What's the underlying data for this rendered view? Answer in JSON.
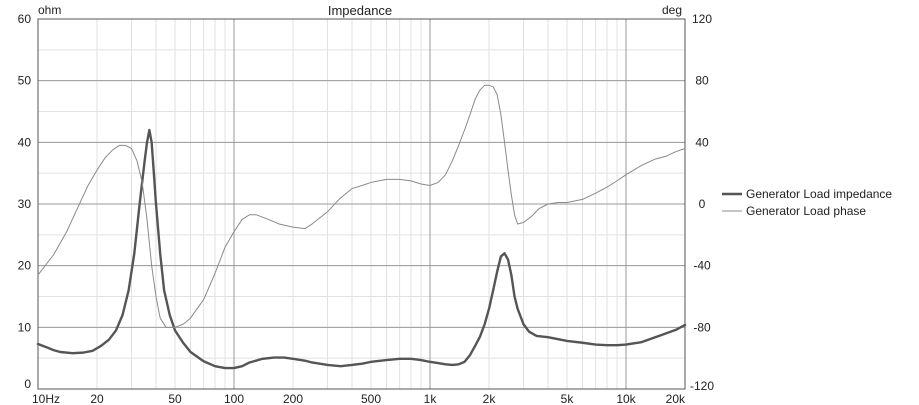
{
  "chart_data": {
    "type": "line",
    "title": "Impedance",
    "x_scale": "log",
    "xlim": [
      10,
      20000
    ],
    "x_ticks": [
      {
        "value": 10,
        "label": "10Hz"
      },
      {
        "value": 20,
        "label": "20"
      },
      {
        "value": 50,
        "label": "50"
      },
      {
        "value": 100,
        "label": "100"
      },
      {
        "value": 200,
        "label": "200"
      },
      {
        "value": 500,
        "label": "500"
      },
      {
        "value": 1000,
        "label": "1k"
      },
      {
        "value": 2000,
        "label": "2k"
      },
      {
        "value": 5000,
        "label": "5k"
      },
      {
        "value": 10000,
        "label": "10k"
      },
      {
        "value": 20000,
        "label": "20k"
      }
    ],
    "y_left": {
      "unit": "ohm",
      "ylim": [
        0,
        60
      ],
      "ticks": [
        0,
        10,
        20,
        30,
        40,
        50,
        60
      ]
    },
    "y_right": {
      "unit": "deg",
      "ylim": [
        -120,
        120
      ],
      "ticks": [
        -120,
        -80,
        -40,
        0,
        40,
        80,
        120
      ]
    },
    "grid": true,
    "legend_position": "right",
    "series": [
      {
        "name": "Generator Load impedance",
        "axis": "left",
        "color": "#555555",
        "points": [
          [
            10,
            7.3
          ],
          [
            11,
            6.8
          ],
          [
            12,
            6.3
          ],
          [
            13,
            6.0
          ],
          [
            15,
            5.8
          ],
          [
            17,
            5.9
          ],
          [
            19,
            6.2
          ],
          [
            21,
            7.0
          ],
          [
            23,
            8.0
          ],
          [
            25,
            9.5
          ],
          [
            27,
            12.0
          ],
          [
            29,
            16.0
          ],
          [
            31,
            22.0
          ],
          [
            33,
            30.0
          ],
          [
            35,
            37.0
          ],
          [
            36,
            40.0
          ],
          [
            37,
            42.0
          ],
          [
            38,
            40.0
          ],
          [
            39,
            35.0
          ],
          [
            40,
            30.0
          ],
          [
            42,
            22.0
          ],
          [
            44,
            16.0
          ],
          [
            47,
            12.0
          ],
          [
            50,
            9.5
          ],
          [
            55,
            7.5
          ],
          [
            60,
            6.0
          ],
          [
            70,
            4.5
          ],
          [
            80,
            3.7
          ],
          [
            90,
            3.4
          ],
          [
            100,
            3.4
          ],
          [
            110,
            3.7
          ],
          [
            120,
            4.3
          ],
          [
            140,
            4.9
          ],
          [
            160,
            5.1
          ],
          [
            180,
            5.1
          ],
          [
            200,
            4.9
          ],
          [
            230,
            4.6
          ],
          [
            250,
            4.3
          ],
          [
            300,
            3.9
          ],
          [
            350,
            3.7
          ],
          [
            400,
            3.9
          ],
          [
            450,
            4.1
          ],
          [
            500,
            4.4
          ],
          [
            600,
            4.7
          ],
          [
            700,
            4.9
          ],
          [
            800,
            4.9
          ],
          [
            900,
            4.7
          ],
          [
            1000,
            4.4
          ],
          [
            1100,
            4.2
          ],
          [
            1200,
            4.0
          ],
          [
            1300,
            3.9
          ],
          [
            1400,
            4.0
          ],
          [
            1500,
            4.4
          ],
          [
            1600,
            5.5
          ],
          [
            1700,
            7.0
          ],
          [
            1800,
            8.5
          ],
          [
            1900,
            10.5
          ],
          [
            2000,
            13.0
          ],
          [
            2100,
            16.0
          ],
          [
            2200,
            19.0
          ],
          [
            2300,
            21.5
          ],
          [
            2400,
            22.0
          ],
          [
            2500,
            21.0
          ],
          [
            2600,
            18.5
          ],
          [
            2700,
            15.0
          ],
          [
            2800,
            13.0
          ],
          [
            3000,
            10.5
          ],
          [
            3200,
            9.3
          ],
          [
            3500,
            8.6
          ],
          [
            4000,
            8.4
          ],
          [
            5000,
            7.8
          ],
          [
            6000,
            7.5
          ],
          [
            7000,
            7.2
          ],
          [
            8000,
            7.1
          ],
          [
            9000,
            7.1
          ],
          [
            10000,
            7.2
          ],
          [
            12000,
            7.6
          ],
          [
            15000,
            8.7
          ],
          [
            18000,
            9.6
          ],
          [
            20000,
            10.4
          ]
        ]
      },
      {
        "name": "Generator Load phase",
        "axis": "right",
        "color": "#8a8a8a",
        "points": [
          [
            10,
            -46
          ],
          [
            12,
            -33
          ],
          [
            14,
            -18
          ],
          [
            16,
            -2
          ],
          [
            18,
            12
          ],
          [
            20,
            22
          ],
          [
            22,
            30
          ],
          [
            24,
            35
          ],
          [
            26,
            38
          ],
          [
            28,
            38
          ],
          [
            30,
            36
          ],
          [
            32,
            28
          ],
          [
            34,
            14
          ],
          [
            36,
            -10
          ],
          [
            38,
            -40
          ],
          [
            40,
            -60
          ],
          [
            42,
            -74
          ],
          [
            45,
            -80
          ],
          [
            50,
            -80
          ],
          [
            55,
            -78
          ],
          [
            60,
            -74
          ],
          [
            70,
            -62
          ],
          [
            80,
            -45
          ],
          [
            90,
            -28
          ],
          [
            100,
            -18
          ],
          [
            110,
            -10
          ],
          [
            120,
            -7
          ],
          [
            130,
            -7
          ],
          [
            150,
            -10
          ],
          [
            170,
            -13
          ],
          [
            200,
            -15
          ],
          [
            230,
            -16
          ],
          [
            250,
            -13
          ],
          [
            300,
            -5
          ],
          [
            350,
            4
          ],
          [
            400,
            10
          ],
          [
            450,
            12
          ],
          [
            500,
            14
          ],
          [
            600,
            16
          ],
          [
            700,
            16
          ],
          [
            800,
            15
          ],
          [
            900,
            13
          ],
          [
            1000,
            12
          ],
          [
            1100,
            14
          ],
          [
            1200,
            19
          ],
          [
            1300,
            28
          ],
          [
            1400,
            38
          ],
          [
            1500,
            48
          ],
          [
            1600,
            58
          ],
          [
            1700,
            68
          ],
          [
            1800,
            74
          ],
          [
            1900,
            77
          ],
          [
            2000,
            77
          ],
          [
            2100,
            76
          ],
          [
            2200,
            71
          ],
          [
            2300,
            58
          ],
          [
            2400,
            40
          ],
          [
            2500,
            22
          ],
          [
            2600,
            6
          ],
          [
            2700,
            -7
          ],
          [
            2800,
            -13
          ],
          [
            3000,
            -12
          ],
          [
            3300,
            -8
          ],
          [
            3600,
            -3
          ],
          [
            4000,
            0
          ],
          [
            4500,
            1
          ],
          [
            5000,
            1
          ],
          [
            6000,
            3
          ],
          [
            7000,
            7
          ],
          [
            8000,
            11
          ],
          [
            9000,
            15
          ],
          [
            10000,
            19
          ],
          [
            12000,
            25
          ],
          [
            14000,
            29
          ],
          [
            16000,
            31
          ],
          [
            18000,
            34
          ],
          [
            20000,
            36
          ]
        ]
      }
    ]
  }
}
